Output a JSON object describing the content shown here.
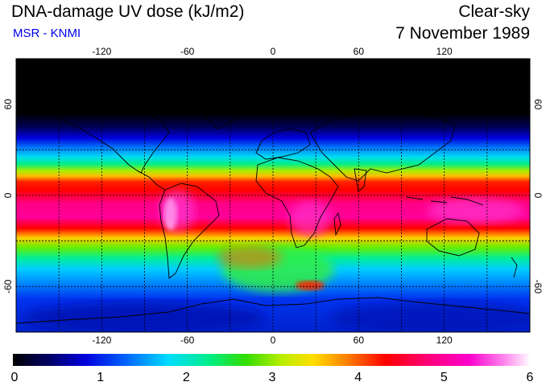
{
  "header": {
    "title": "DNA-damage UV dose (kJ/m2)",
    "source": "MSR - KNMI",
    "condition": "Clear-sky",
    "date": "7 November 1989"
  },
  "map": {
    "projection": "equirectangular",
    "lon_range": [
      -180,
      180
    ],
    "lat_range": [
      -90,
      90
    ],
    "lon_ticks": [
      -120,
      -60,
      0,
      60,
      120
    ],
    "lat_ticks": [
      60,
      0,
      -60
    ],
    "lon_tick_labels": [
      "-120",
      "-60",
      "0",
      "60",
      "120"
    ],
    "lat_tick_labels": [
      "60",
      "0",
      "-60"
    ],
    "grid": "dashed every 30 degrees",
    "field": "daily DNA-damage weighted UV dose, maximum ~6 kJ/m2 in southern tropics"
  },
  "colorbar": {
    "min": 0,
    "max": 6,
    "tick_labels": [
      "0",
      "1",
      "2",
      "3",
      "4",
      "5",
      "6"
    ],
    "stops": [
      "#000000",
      "#000066",
      "#0000dd",
      "#0066ff",
      "#00ddff",
      "#00ee88",
      "#33dd00",
      "#bbee00",
      "#ffdd00",
      "#ff8800",
      "#ff0000",
      "#ff0077",
      "#ff00cc",
      "#ff88ee",
      "#ffffff"
    ]
  }
}
